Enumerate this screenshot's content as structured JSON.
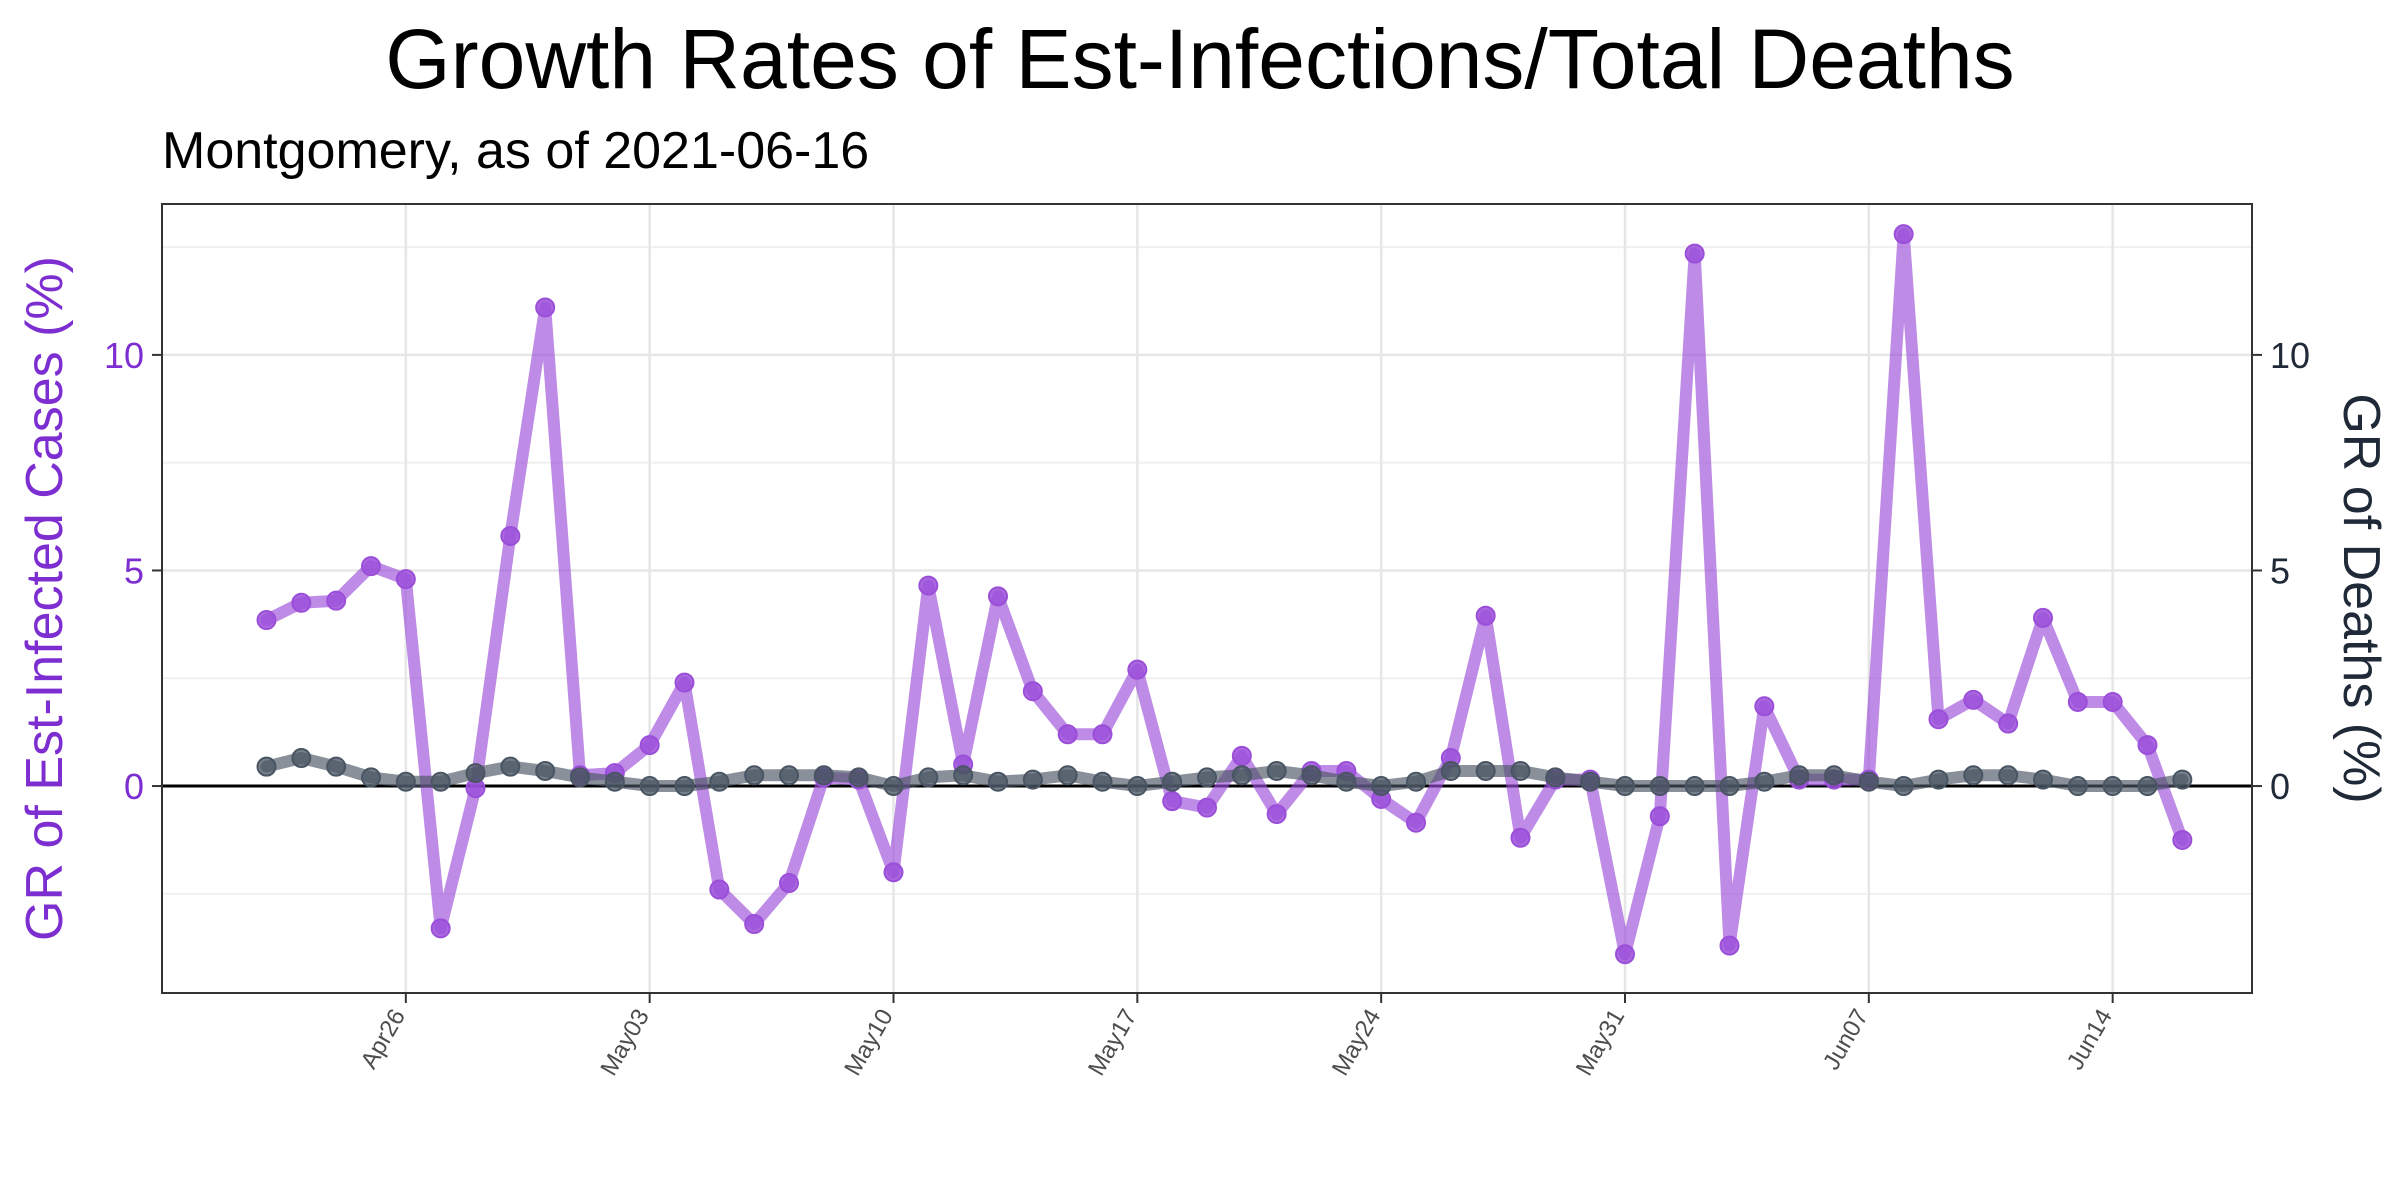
{
  "chart_data": {
    "type": "line",
    "title": "Growth Rates of Est-Infections/Total Deaths",
    "subtitle": "Montgomery, as of 2021-06-16",
    "ylabel_left": "GR of Est-Infected Cases (%)",
    "ylabel_right": "GR of Deaths (%)",
    "xlabel": "",
    "ylim": [
      -4.8,
      13.5
    ],
    "yticks": [
      0,
      5,
      10
    ],
    "y_tick_labels": [
      "0",
      "5",
      "10"
    ],
    "x_range": [
      "2021-04-19",
      "2021-06-18"
    ],
    "x_tick_dates": [
      "2021-04-26",
      "2021-05-03",
      "2021-05-10",
      "2021-05-17",
      "2021-05-24",
      "2021-05-31",
      "2021-06-07",
      "2021-06-14"
    ],
    "x_tick_labels": [
      "Apr26",
      "May03",
      "May10",
      "May17",
      "May24",
      "May31",
      "Jun07",
      "Jun14"
    ],
    "grid": true,
    "hline": 0,
    "colors": {
      "infections": "#9b4fd9",
      "infections_axis": "#7d2ed1",
      "deaths": "#4a5563",
      "deaths_axis": "#1f2937"
    },
    "x": [
      "2021-04-22",
      "2021-04-23",
      "2021-04-24",
      "2021-04-25",
      "2021-04-26",
      "2021-04-27",
      "2021-04-28",
      "2021-04-29",
      "2021-04-30",
      "2021-05-01",
      "2021-05-02",
      "2021-05-03",
      "2021-05-04",
      "2021-05-05",
      "2021-05-06",
      "2021-05-07",
      "2021-05-08",
      "2021-05-09",
      "2021-05-10",
      "2021-05-11",
      "2021-05-12",
      "2021-05-13",
      "2021-05-14",
      "2021-05-15",
      "2021-05-16",
      "2021-05-17",
      "2021-05-18",
      "2021-05-19",
      "2021-05-20",
      "2021-05-21",
      "2021-05-22",
      "2021-05-23",
      "2021-05-24",
      "2021-05-25",
      "2021-05-26",
      "2021-05-27",
      "2021-05-28",
      "2021-05-29",
      "2021-05-30",
      "2021-05-31",
      "2021-06-01",
      "2021-06-02",
      "2021-06-03",
      "2021-06-04",
      "2021-06-05",
      "2021-06-06",
      "2021-06-07",
      "2021-06-08",
      "2021-06-09",
      "2021-06-10",
      "2021-06-11",
      "2021-06-12",
      "2021-06-13",
      "2021-06-14",
      "2021-06-15",
      "2021-06-16"
    ],
    "series": [
      {
        "key": "infections",
        "axis": "left",
        "values": [
          3.85,
          4.25,
          4.3,
          5.1,
          4.8,
          -3.3,
          -0.05,
          5.8,
          11.1,
          0.25,
          0.3,
          0.95,
          2.4,
          -2.4,
          -3.2,
          -2.25,
          0.2,
          0.15,
          -2.0,
          4.65,
          0.5,
          4.4,
          2.2,
          1.2,
          1.2,
          2.7,
          -0.35,
          -0.5,
          0.7,
          -0.65,
          0.35,
          0.35,
          -0.3,
          -0.85,
          0.65,
          3.95,
          -1.2,
          0.15,
          0.15,
          -3.9,
          -0.7,
          12.35,
          -3.7,
          1.85,
          0.15,
          0.15,
          0.15,
          12.8,
          1.55,
          2.0,
          1.45,
          3.9,
          1.95,
          1.95,
          0.95,
          -1.25
        ]
      },
      {
        "key": "deaths",
        "axis": "right",
        "values": [
          0.45,
          0.65,
          0.45,
          0.2,
          0.1,
          0.1,
          0.3,
          0.45,
          0.35,
          0.2,
          0.1,
          0.0,
          0.0,
          0.1,
          0.25,
          0.25,
          0.25,
          0.2,
          0.0,
          0.2,
          0.25,
          0.1,
          0.15,
          0.25,
          0.1,
          0.0,
          0.1,
          0.2,
          0.25,
          0.35,
          0.25,
          0.1,
          0.0,
          0.1,
          0.35,
          0.35,
          0.35,
          0.2,
          0.1,
          0.0,
          0.0,
          0.0,
          0.0,
          0.1,
          0.25,
          0.25,
          0.1,
          0.0,
          0.15,
          0.25,
          0.25,
          0.15,
          0.0,
          0.0,
          0.0,
          0.15
        ]
      }
    ]
  }
}
